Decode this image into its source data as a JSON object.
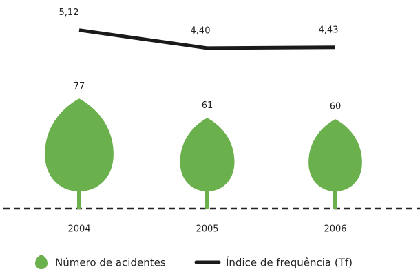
{
  "chart_data": {
    "type": "combo",
    "categories": [
      "2004",
      "2005",
      "2006"
    ],
    "series": [
      {
        "name": "Número de acidentes",
        "type": "bar",
        "color": "#6ab04c",
        "values": [
          77,
          61,
          60
        ]
      },
      {
        "name": "Índice de frequência (Tf)",
        "type": "line",
        "color": "#1a1a1a",
        "values": [
          5.12,
          4.4,
          4.43
        ],
        "value_labels": [
          "5,12",
          "4,40",
          "4,43"
        ]
      }
    ]
  }
}
